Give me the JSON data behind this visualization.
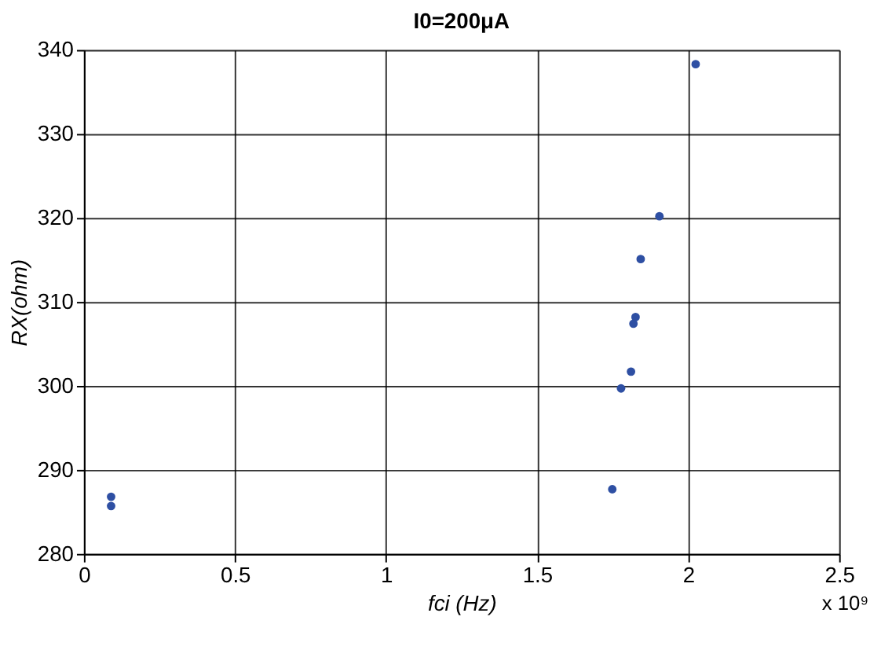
{
  "chart_data": {
    "type": "scatter",
    "title": "I0=200μA",
    "xlabel": "fci (Hz)",
    "ylabel": "RX(ohm)",
    "x": [
      0.09,
      0.09,
      1.749,
      1.778,
      1.811,
      1.819,
      1.826,
      1.843,
      1.905,
      2.025
    ],
    "series": [
      {
        "color": "#2e4fa3",
        "values": [
          286.8,
          285.7,
          287.7,
          299.7,
          301.7,
          307.4,
          308.2,
          315.1,
          320.2,
          338.3
        ]
      }
    ],
    "xlim": [
      0,
      2.5
    ],
    "xticks": [
      0,
      0.5,
      1,
      1.5,
      2,
      2.5
    ],
    "ylim": [
      280,
      340
    ],
    "yticks": [
      280,
      290,
      300,
      310,
      320,
      330,
      340
    ],
    "grid": true,
    "marker": "circle",
    "legend": false,
    "annotations": [
      "x 10⁹"
    ]
  }
}
